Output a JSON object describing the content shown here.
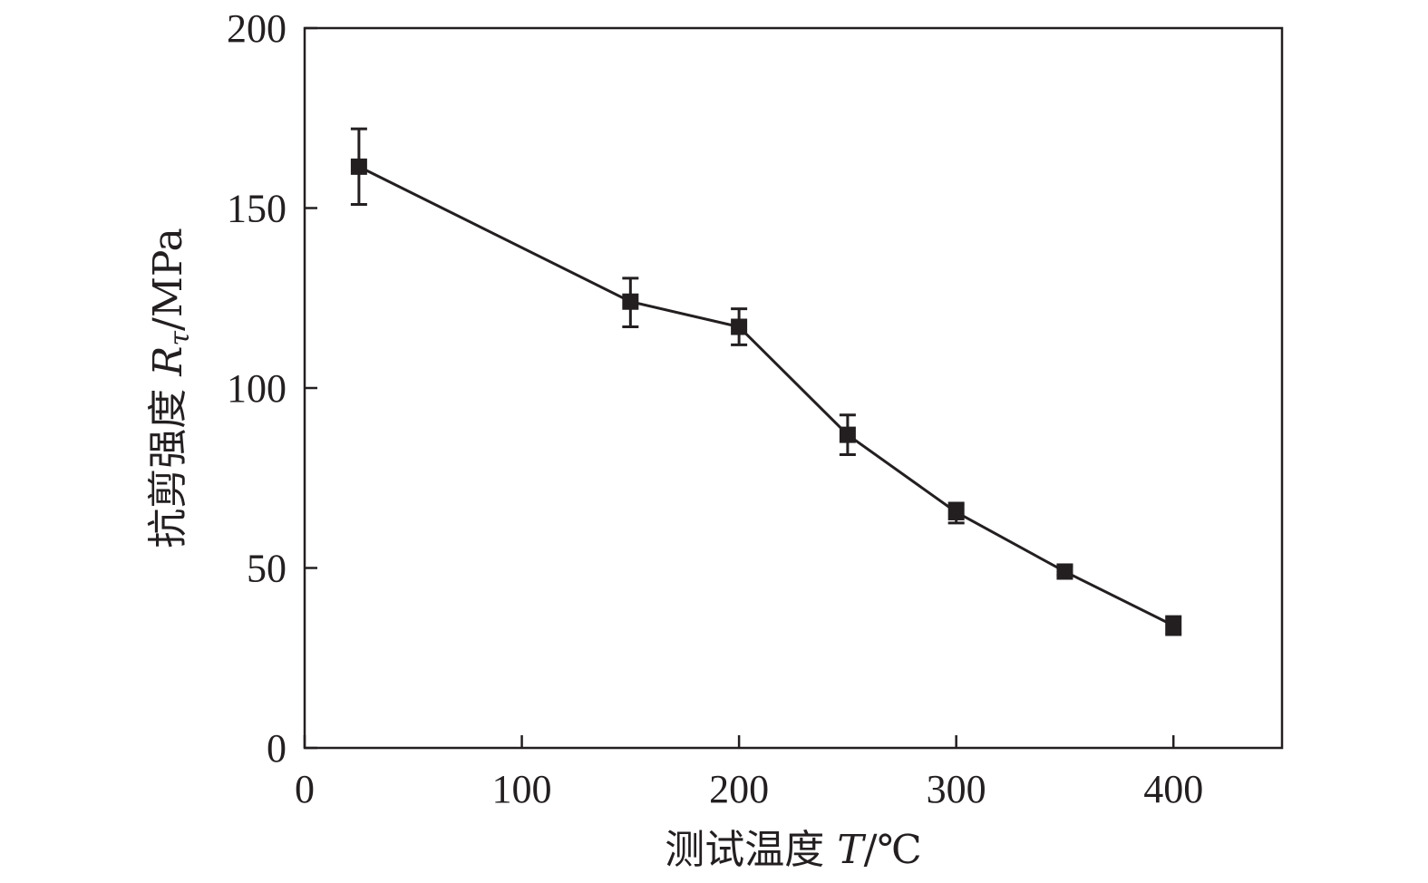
{
  "chart_data": {
    "type": "line",
    "xlabel": "测试温度 T/℃",
    "xlabel_parts": {
      "prefix": "测试温度 ",
      "symbol": "T",
      "suffix": "/℃"
    },
    "ylabel": "抗剪强度 Rτ/MPa",
    "ylabel_parts": {
      "prefix": "抗剪强度 ",
      "symbol": "R",
      "subscript": "τ",
      "suffix": "/MPa"
    },
    "xlim": [
      0,
      450
    ],
    "ylim": [
      0,
      200
    ],
    "x_ticks": [
      0,
      100,
      200,
      300,
      400
    ],
    "y_ticks": [
      0,
      50,
      100,
      150,
      200
    ],
    "grid": false,
    "series": [
      {
        "x": [
          25,
          150,
          200,
          250,
          300,
          350,
          400
        ],
        "y": [
          161.5,
          124,
          117,
          87,
          65.5,
          49,
          34
        ],
        "error_low": [
          151,
          117,
          112,
          81.5,
          62.5,
          48,
          31.5
        ],
        "error_high": [
          172,
          130.5,
          122,
          92.5,
          68,
          50.5,
          36.5
        ],
        "marker": "square",
        "color": "#231f20"
      }
    ]
  }
}
